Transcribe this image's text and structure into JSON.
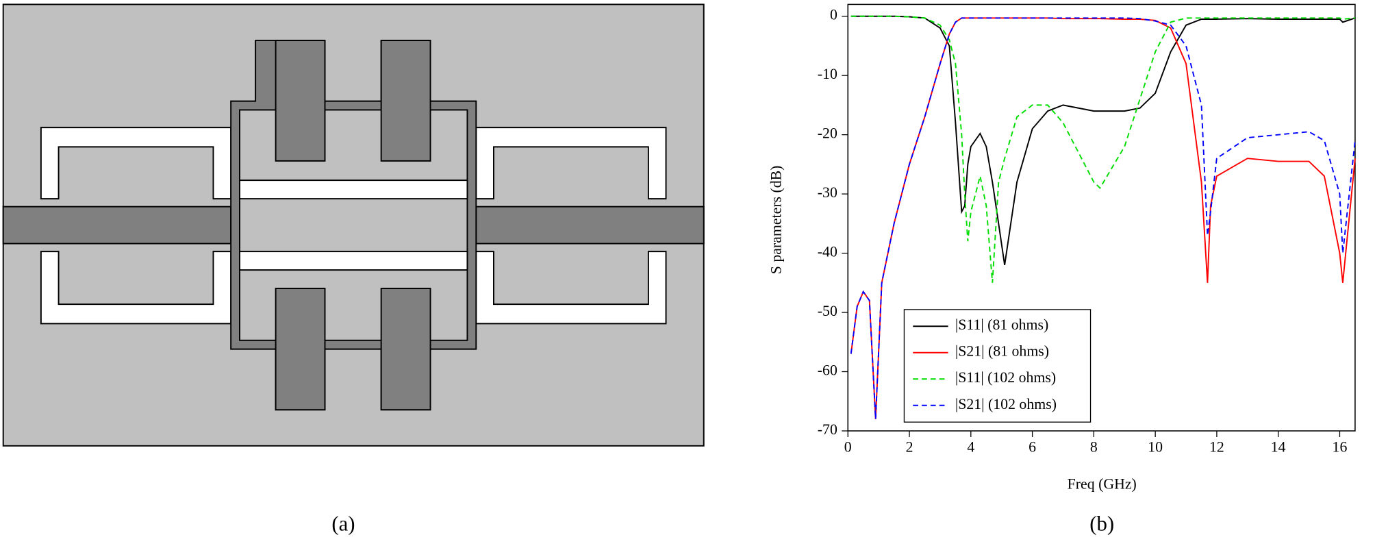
{
  "figure": {
    "panel_labels": [
      "(a)",
      "(b)"
    ]
  },
  "chart_data": {
    "type": "line",
    "xlabel": "Freq (GHz)",
    "ylabel": "S parameters (dB)",
    "x": [
      0.1,
      0.3,
      0.5,
      0.7,
      0.9,
      1.1,
      1.5,
      2,
      2.5,
      3,
      3.3,
      3.5,
      3.7,
      3.8,
      3.9,
      4.0,
      4.3,
      4.5,
      4.7,
      4.9,
      5.1,
      5.5,
      6,
      6.5,
      7,
      8,
      8.2,
      9,
      9.5,
      10,
      10.5,
      11,
      11.5,
      11.7,
      11.8,
      12,
      13,
      14,
      15,
      15.5,
      16,
      16.1,
      16.5
    ],
    "series": [
      {
        "name": "|S11| (81  ohms)",
        "color": "#000000",
        "dashed": false,
        "values": [
          0,
          0,
          0,
          0,
          0,
          0,
          0,
          -0.1,
          -0.3,
          -2,
          -5,
          -18,
          -33,
          -32,
          -25,
          -22,
          -19.8,
          -22,
          -28,
          -35,
          -42,
          -28,
          -19,
          -16,
          -15,
          -16,
          -16,
          -16,
          -15.5,
          -13,
          -6,
          -1.5,
          -0.5,
          -0.5,
          -0.5,
          -0.5,
          -0.4,
          -0.5,
          -0.5,
          -0.5,
          -0.5,
          -1,
          -0.3
        ]
      },
      {
        "name": "|S21| (81  ohms)",
        "color": "#ff0000",
        "dashed": false,
        "values": [
          -57,
          -49,
          -46.5,
          -48,
          -68,
          -45,
          -35,
          -25,
          -17,
          -8,
          -3,
          -1,
          -0.3,
          -0.3,
          -0.3,
          -0.3,
          -0.3,
          -0.3,
          -0.3,
          -0.3,
          -0.3,
          -0.3,
          -0.3,
          -0.3,
          -0.4,
          -0.4,
          -0.4,
          -0.5,
          -0.5,
          -0.7,
          -2,
          -8,
          -28,
          -45,
          -32,
          -27,
          -24,
          -24.5,
          -24.5,
          -27,
          -40,
          -45,
          -24
        ]
      },
      {
        "name": "|S11| (102 ohms)",
        "color": "#00dd00",
        "dashed": true,
        "values": [
          0,
          0,
          0,
          0,
          0,
          0,
          0,
          -0.1,
          -0.3,
          -1.5,
          -4,
          -8,
          -20,
          -30,
          -38,
          -33,
          -27,
          -32,
          -45,
          -28,
          -24,
          -17,
          -15,
          -15,
          -18,
          -28,
          -29,
          -22,
          -14,
          -6,
          -1,
          -0.3,
          -0.3,
          -0.3,
          -0.3,
          -0.3,
          -0.3,
          -0.3,
          -0.3,
          -0.3,
          -0.3,
          -0.5,
          -0.3
        ]
      },
      {
        "name": "|S21| (102 ohms)",
        "color": "#0000ff",
        "dashed": true,
        "values": [
          -57,
          -49,
          -46.5,
          -48,
          -68,
          -45,
          -35,
          -25,
          -17,
          -8,
          -3,
          -1,
          -0.3,
          -0.3,
          -0.3,
          -0.3,
          -0.3,
          -0.3,
          -0.3,
          -0.3,
          -0.3,
          -0.3,
          -0.3,
          -0.3,
          -0.3,
          -0.3,
          -0.3,
          -0.3,
          -0.4,
          -0.8,
          -1.5,
          -5,
          -15,
          -37,
          -33,
          -24,
          -20.5,
          -20,
          -19.5,
          -21,
          -30,
          -40,
          -21
        ]
      }
    ],
    "xlim": [
      0,
      16.5
    ],
    "ylim": [
      -70,
      2
    ],
    "xticks": [
      0,
      2,
      4,
      6,
      8,
      10,
      12,
      14,
      16
    ],
    "yticks": [
      -70,
      -60,
      -50,
      -40,
      -30,
      -20,
      -10,
      0
    ],
    "legend": "lower left"
  }
}
